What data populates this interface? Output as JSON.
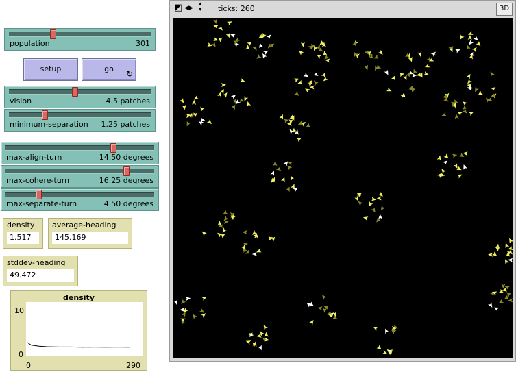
{
  "sliders": [
    {
      "id": "population",
      "label": "population",
      "value": "301",
      "fraction": 0.58
    },
    {
      "id": "vision",
      "label": "vision",
      "value": "4.5 patches",
      "fraction": 0.45
    },
    {
      "id": "minimum-separation",
      "label": "minimum-separation",
      "value": "1.25 patches",
      "fraction": 0.25
    },
    {
      "id": "max-align-turn",
      "label": "max-align-turn",
      "value": "14.50 degrees",
      "fraction": 0.725
    },
    {
      "id": "max-cohere-turn",
      "label": "max-cohere-turn",
      "value": "16.25 degrees",
      "fraction": 0.8125
    },
    {
      "id": "max-separate-turn",
      "label": "max-separate-turn",
      "value": "4.50 degrees",
      "fraction": 0.225
    }
  ],
  "buttons": {
    "setup": "setup",
    "go": "go",
    "go_icon": "forever-loop-icon"
  },
  "monitors": [
    {
      "id": "density",
      "label": "density",
      "value": "1.517"
    },
    {
      "id": "average-heading",
      "label": "average-heading",
      "value": "145.169"
    },
    {
      "id": "stddev-heading",
      "label": "stddev-heading",
      "value": "49.472"
    }
  ],
  "plot": {
    "title": "density",
    "y_max_label": "10",
    "y_min_label": "0",
    "x_min_label": "0",
    "x_max_label": "290",
    "chart_data": {
      "type": "line",
      "title": "density",
      "xlim": [
        0,
        290
      ],
      "ylim": [
        0,
        10
      ],
      "x": [
        0,
        10,
        20,
        30,
        50,
        80,
        110,
        140,
        170,
        200,
        230,
        260
      ],
      "y": [
        2.4,
        1.9,
        1.8,
        1.7,
        1.6,
        1.55,
        1.55,
        1.5,
        1.52,
        1.5,
        1.52,
        1.5
      ]
    }
  },
  "view": {
    "ticks_label": "ticks: 260",
    "btn_3d": "3D",
    "tools": [
      "speed-icon",
      "arrows-horizontal-icon",
      "arrows-vertical-icon"
    ],
    "colors": {
      "background": "#000000",
      "turtle_bright": "#f0f060",
      "turtle_dim": "#8a8a2a",
      "turtle_white": "#ffffff"
    },
    "turtle_count": 301
  }
}
